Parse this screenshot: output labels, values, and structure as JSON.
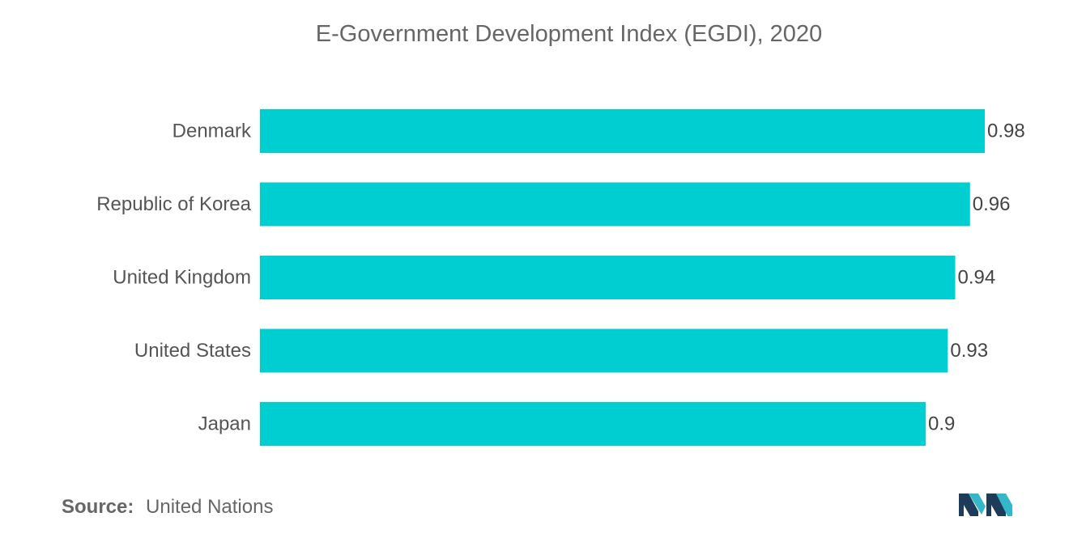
{
  "chart_data": {
    "type": "bar",
    "orientation": "horizontal",
    "title": "E-Government Development Index (EGDI), 2020",
    "categories": [
      "Denmark",
      "Republic of Korea",
      "United Kingdom",
      "United States",
      "Japan"
    ],
    "values": [
      0.98,
      0.96,
      0.94,
      0.93,
      0.9
    ],
    "value_labels": [
      "0.98",
      "0.96",
      "0.94",
      "0.93",
      "0.9"
    ],
    "xlabel": "",
    "ylabel": "",
    "xlim": [
      0,
      1
    ],
    "grid": false,
    "bar_color": "#00CED1"
  },
  "footer": {
    "source_label": "Source:",
    "source_value": "United Nations"
  },
  "logo": {
    "icon": "mordor-intelligence-logo-icon",
    "colors": [
      "#1f3b5a",
      "#35b7c9"
    ]
  }
}
